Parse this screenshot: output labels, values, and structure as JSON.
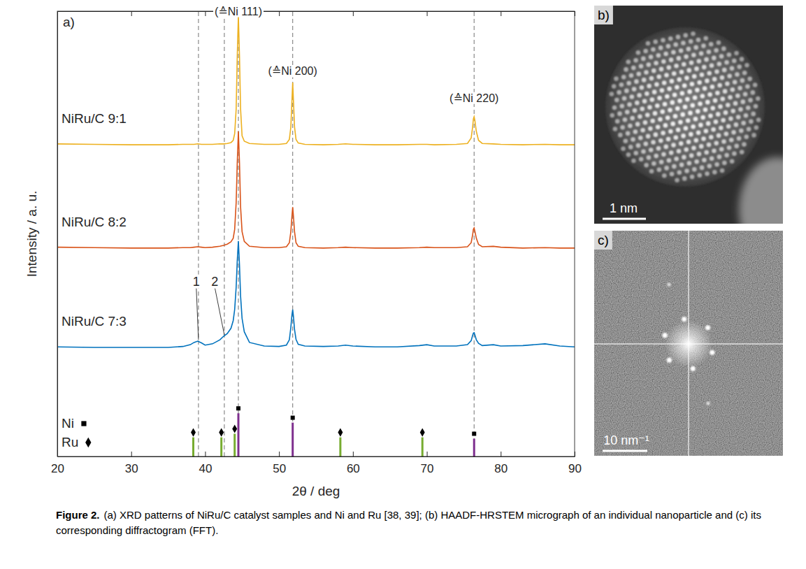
{
  "chart_data": {
    "type": "line",
    "label": "a)",
    "x_label": "2θ / deg",
    "y_label": "Intensity / a. u.",
    "xlim": [
      20,
      90
    ],
    "xticks": [
      20,
      30,
      40,
      50,
      60,
      70,
      80,
      90
    ],
    "ylim": [
      0,
      100
    ],
    "yticks": [],
    "tick_labels": "x",
    "grid": false,
    "legend": "lower left",
    "x": [
      20,
      25,
      30,
      35,
      37,
      38,
      38.5,
      39,
      39.5,
      40,
      41,
      42,
      42.5,
      43,
      43.5,
      43.8,
      44.0,
      44.2,
      44.35,
      44.5,
      44.65,
      44.8,
      45.0,
      45.3,
      46,
      48,
      50,
      51,
      51.4,
      51.6,
      51.75,
      51.85,
      51.95,
      52.1,
      52.3,
      52.6,
      53.5,
      56,
      58,
      59,
      60,
      63,
      66,
      69,
      70,
      71,
      74,
      75.5,
      76.0,
      76.2,
      76.3,
      76.4,
      76.5,
      76.7,
      77.0,
      77.5,
      79,
      80,
      83,
      86,
      88,
      90
    ],
    "series": [
      {
        "name": "NiRu/C 9:1",
        "color": "#edb120",
        "line_style": "solid",
        "values": [
          70.2,
          70.1,
          70.0,
          70.0,
          70.1,
          70.1,
          70.1,
          70.2,
          70.1,
          70.1,
          70.1,
          70.2,
          70.2,
          70.3,
          70.5,
          71.0,
          72.5,
          78,
          90,
          99,
          90,
          78,
          72,
          70.8,
          70.3,
          70.1,
          70.1,
          70.3,
          71.2,
          74,
          80,
          84,
          80,
          74,
          71.2,
          70.4,
          70.1,
          70.0,
          70.1,
          70.2,
          70.1,
          70.0,
          70.0,
          70.1,
          70.1,
          70.0,
          70.1,
          70.3,
          71.5,
          74,
          75.8,
          76.3,
          75.5,
          73,
          71,
          70.3,
          70.2,
          70.1,
          70.0,
          70.1,
          70.0,
          70.0
        ]
      },
      {
        "name": "NiRu/C 8:2",
        "color": "#d95319",
        "line_style": "solid",
        "values": [
          47.0,
          46.9,
          46.8,
          46.8,
          46.9,
          46.9,
          47.0,
          47.1,
          47.0,
          46.9,
          47.0,
          47.2,
          47.4,
          47.7,
          48.2,
          49.0,
          51,
          57,
          66,
          73,
          66,
          56,
          50.5,
          48.3,
          47.2,
          46.9,
          46.9,
          47.1,
          48,
          50.5,
          54,
          56,
          54,
          50.5,
          48,
          47.2,
          46.9,
          46.8,
          46.9,
          47.0,
          46.9,
          46.8,
          46.8,
          46.9,
          47.0,
          46.9,
          46.9,
          47.1,
          48,
          49.8,
          51,
          51.3,
          50.6,
          49,
          47.6,
          47.1,
          47.2,
          47.0,
          46.8,
          46.9,
          46.8,
          46.8
        ]
      },
      {
        "name": "NiRu/C 7:3",
        "color": "#0072bd",
        "line_style": "solid",
        "values": [
          24.6,
          24.5,
          24.5,
          24.5,
          24.7,
          25.1,
          25.6,
          25.9,
          25.5,
          25.0,
          25.3,
          26.2,
          27.0,
          27.6,
          28.8,
          30.5,
          33,
          38,
          44,
          48.4,
          43,
          36,
          31,
          28,
          25.6,
          24.8,
          24.7,
          25.0,
          26.2,
          29,
          31.8,
          33,
          31.5,
          28.5,
          26.3,
          25.2,
          24.8,
          24.7,
          24.8,
          25.0,
          24.8,
          24.6,
          24.6,
          24.9,
          25.1,
          24.8,
          24.8,
          25.1,
          26,
          27.2,
          27.7,
          27.8,
          27.3,
          26.2,
          25.4,
          24.9,
          25.1,
          24.8,
          24.9,
          25.3,
          24.8,
          24.6
        ]
      },
      {
        "name": "Ni",
        "type": "stem",
        "marker": "square",
        "color": "#7e2f8e",
        "x": [
          44.5,
          51.85,
          76.4
        ],
        "values": [
          9.7,
          7.6,
          4.0
        ]
      },
      {
        "name": "Ru",
        "type": "stem",
        "marker": "diamond",
        "color": "#77ac30",
        "x": [
          38.4,
          42.2,
          44.0,
          58.3,
          69.4
        ],
        "values": [
          4.3,
          4.3,
          5.1,
          4.3,
          4.3
        ]
      }
    ],
    "reference_lines": [
      39.1,
      42.6,
      44.5,
      51.85,
      76.4
    ],
    "annotations": [
      {
        "text": "(≙Ni 111)",
        "x": 44.5,
        "y": 100
      },
      {
        "text": "(≙Ni 200)",
        "x": 51.85,
        "y": 86.5
      },
      {
        "text": "(≙Ni 220)",
        "x": 76.4,
        "y": 80.5
      },
      {
        "text": "1",
        "x": 38.8,
        "y": 39.3,
        "target": [
          39.1,
          26.2
        ]
      },
      {
        "text": "2",
        "x": 41.3,
        "y": 39.3,
        "target": [
          42.6,
          27.3
        ]
      }
    ]
  },
  "images": [
    {
      "label": "b)",
      "scale_bar": "1 nm"
    },
    {
      "label": "c)",
      "scale_bar": "10 nm⁻¹"
    }
  ],
  "caption": {
    "label": "Figure 2.",
    "text": "(a) XRD patterns of NiRu/C catalyst samples and Ni and Ru [38, 39]; (b) HAADF-HRSTEM micrograph of an individual nanoparticle and (c) its corresponding diffractogram (FFT)."
  }
}
